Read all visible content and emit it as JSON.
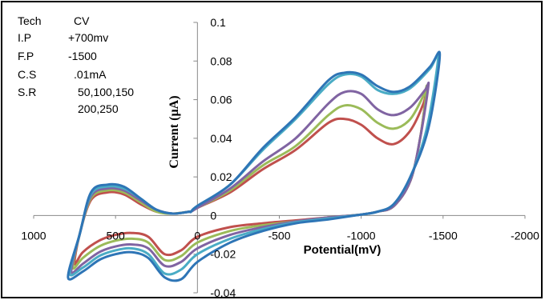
{
  "info_panel": {
    "rows": [
      {
        "key": "Tech",
        "value": "CV"
      },
      {
        "key": "I.P",
        "value": "+700mv"
      },
      {
        "key": "F.P",
        "value": "-1500"
      },
      {
        "key": "C.S",
        "value": ".01mA"
      },
      {
        "key": "S.R",
        "value": "50,100,150"
      },
      {
        "key": "",
        "value": "200,250"
      }
    ]
  },
  "chart_data": {
    "type": "line",
    "title": "",
    "xlabel": "Potential(mV)",
    "ylabel": "Current (µA)",
    "xlim": [
      1000,
      -2000
    ],
    "ylim": [
      -0.04,
      0.1
    ],
    "x_ticks": [
      "1000",
      "500",
      "0",
      "-500",
      "-1000",
      "-1500",
      "-2000"
    ],
    "x_tick_values": [
      1000,
      500,
      0,
      -500,
      -1000,
      -1500,
      -2000
    ],
    "y_ticks": [
      "-0.04",
      "-0.02",
      "0",
      "0.02",
      "0.04",
      "0.06",
      "0.08",
      "0.1"
    ],
    "y_tick_values": [
      -0.04,
      -0.02,
      0,
      0.02,
      0.04,
      0.06,
      0.08,
      0.1
    ],
    "grid": false,
    "legend": "none",
    "series": [
      {
        "color": "#c0504d",
        "x": [
          40,
          0,
          -200,
          -400,
          -600,
          -800,
          -900,
          -1000,
          -1100,
          -1200,
          -1300,
          -1380,
          -1400,
          -1360,
          -1300,
          -1200,
          -1100,
          -1000,
          -800,
          -600,
          -400,
          -200,
          0,
          100,
          200,
          300,
          400,
          500,
          600,
          700,
          750,
          720,
          650,
          550,
          450,
          350,
          250,
          150,
          50
        ],
        "y": [
          0.002,
          0.004,
          0.012,
          0.024,
          0.034,
          0.048,
          0.05,
          0.047,
          0.04,
          0.037,
          0.044,
          0.058,
          0.066,
          0.04,
          0.018,
          0.005,
          0.002,
          0.0005,
          -0.001,
          -0.0025,
          -0.004,
          -0.006,
          -0.011,
          -0.018,
          -0.02,
          -0.011,
          -0.009,
          -0.01,
          -0.013,
          -0.019,
          -0.025,
          -0.01,
          0.008,
          0.012,
          0.011,
          0.006,
          0.002,
          0.001,
          0.002
        ]
      },
      {
        "color": "#9bbb59",
        "x": [
          40,
          0,
          -200,
          -400,
          -600,
          -800,
          -900,
          -1000,
          -1100,
          -1200,
          -1300,
          -1380,
          -1400,
          -1360,
          -1300,
          -1200,
          -1100,
          -1000,
          -800,
          -600,
          -400,
          -200,
          0,
          100,
          200,
          300,
          400,
          500,
          600,
          700,
          760,
          720,
          650,
          550,
          450,
          350,
          250,
          150,
          50
        ],
        "y": [
          0.002,
          0.004,
          0.013,
          0.026,
          0.036,
          0.052,
          0.057,
          0.055,
          0.048,
          0.045,
          0.05,
          0.062,
          0.066,
          0.04,
          0.018,
          0.005,
          0.002,
          0.0005,
          -0.001,
          -0.003,
          -0.005,
          -0.008,
          -0.014,
          -0.021,
          -0.023,
          -0.014,
          -0.012,
          -0.013,
          -0.016,
          -0.022,
          -0.027,
          -0.01,
          0.009,
          0.013,
          0.012,
          0.007,
          0.002,
          0.001,
          0.002
        ]
      },
      {
        "color": "#8064a2",
        "x": [
          40,
          0,
          -200,
          -400,
          -600,
          -800,
          -900,
          -1000,
          -1100,
          -1200,
          -1300,
          -1390,
          -1410,
          -1360,
          -1300,
          -1200,
          -1100,
          -1000,
          -800,
          -600,
          -400,
          -200,
          0,
          100,
          200,
          300,
          400,
          500,
          600,
          700,
          770,
          720,
          650,
          550,
          450,
          350,
          250,
          150,
          50
        ],
        "y": [
          0.002,
          0.004,
          0.014,
          0.028,
          0.04,
          0.058,
          0.064,
          0.063,
          0.055,
          0.052,
          0.056,
          0.065,
          0.067,
          0.04,
          0.018,
          0.005,
          0.002,
          0.0005,
          -0.001,
          -0.003,
          -0.006,
          -0.01,
          -0.017,
          -0.024,
          -0.026,
          -0.017,
          -0.015,
          -0.016,
          -0.019,
          -0.025,
          -0.029,
          -0.01,
          0.01,
          0.014,
          0.013,
          0.008,
          0.003,
          0.001,
          0.002
        ]
      },
      {
        "color": "#4aacc5",
        "x": [
          40,
          0,
          -200,
          -400,
          -600,
          -800,
          -900,
          -1000,
          -1100,
          -1200,
          -1300,
          -1420,
          -1470,
          -1400,
          -1300,
          -1200,
          -1100,
          -1000,
          -800,
          -600,
          -400,
          -200,
          0,
          100,
          200,
          300,
          400,
          500,
          600,
          700,
          780,
          720,
          650,
          550,
          450,
          350,
          250,
          150,
          50
        ],
        "y": [
          0.002,
          0.005,
          0.016,
          0.034,
          0.05,
          0.068,
          0.073,
          0.072,
          0.065,
          0.063,
          0.066,
          0.076,
          0.082,
          0.045,
          0.02,
          0.006,
          0.002,
          0.0005,
          -0.0015,
          -0.0035,
          -0.007,
          -0.012,
          -0.02,
          -0.028,
          -0.03,
          -0.02,
          -0.017,
          -0.018,
          -0.021,
          -0.027,
          -0.03,
          -0.01,
          0.011,
          0.015,
          0.014,
          0.009,
          0.003,
          0.001,
          0.002
        ]
      },
      {
        "color": "#2e75b6",
        "x": [
          40,
          0,
          -200,
          -400,
          -600,
          -800,
          -900,
          -1000,
          -1100,
          -1200,
          -1300,
          -1420,
          -1480,
          -1410,
          -1300,
          -1200,
          -1100,
          -1000,
          -800,
          -600,
          -400,
          -200,
          0,
          100,
          200,
          300,
          400,
          500,
          600,
          700,
          790,
          720,
          650,
          550,
          450,
          350,
          250,
          150,
          50
        ],
        "y": [
          0.002,
          0.005,
          0.016,
          0.035,
          0.051,
          0.07,
          0.074,
          0.073,
          0.067,
          0.064,
          0.067,
          0.077,
          0.083,
          0.045,
          0.02,
          0.006,
          0.002,
          0.0005,
          -0.002,
          -0.004,
          -0.008,
          -0.014,
          -0.024,
          -0.033,
          -0.032,
          -0.022,
          -0.019,
          -0.02,
          -0.023,
          -0.029,
          -0.032,
          -0.01,
          0.012,
          0.016,
          0.015,
          0.009,
          0.003,
          0.001,
          0.002
        ]
      }
    ]
  }
}
